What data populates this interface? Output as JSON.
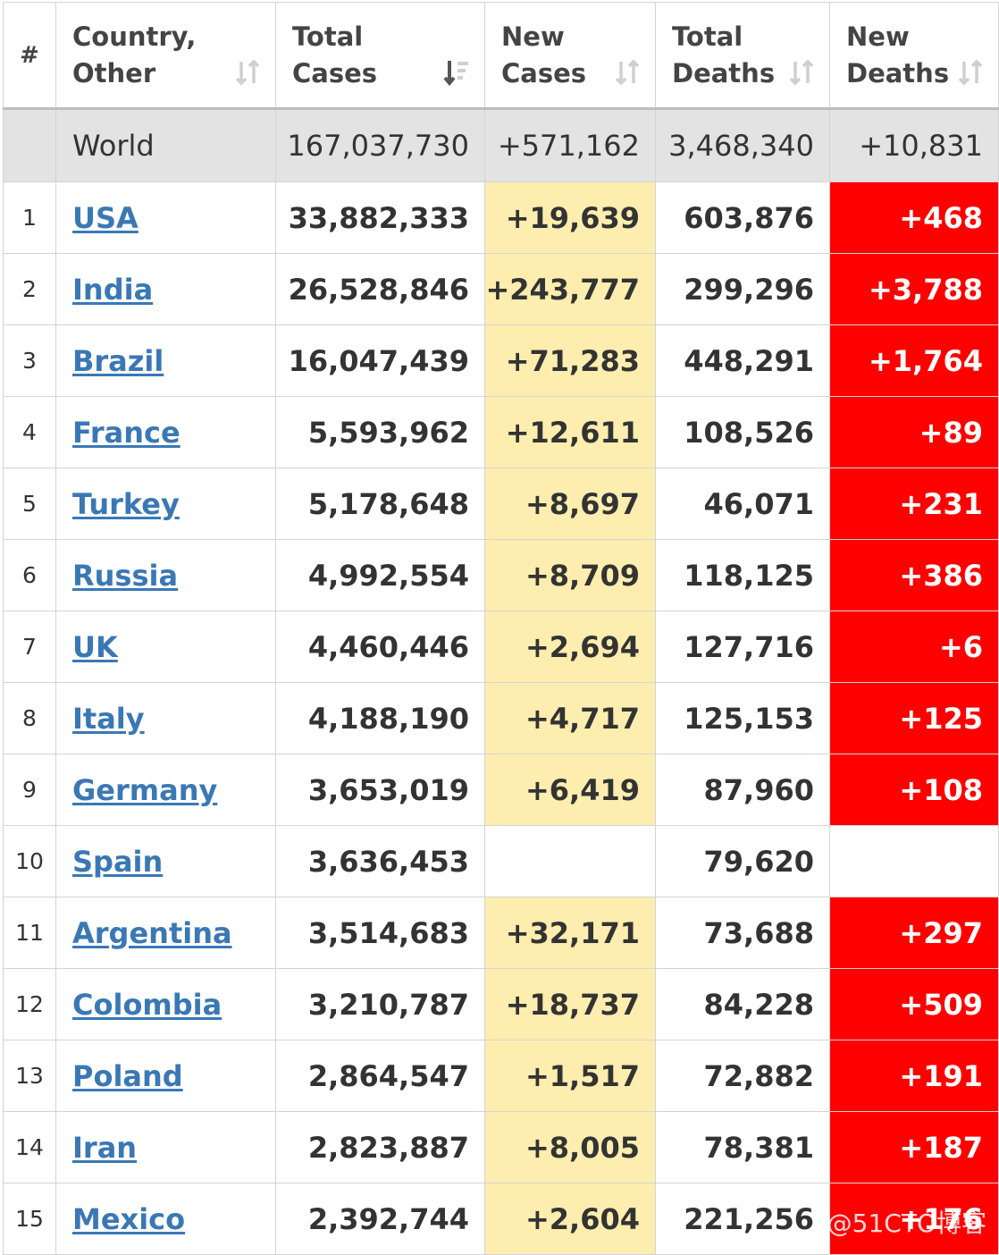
{
  "header": {
    "index": "#",
    "country": [
      "Country,",
      "Other"
    ],
    "total_cases": [
      "Total",
      "Cases"
    ],
    "new_cases": [
      "New",
      "Cases"
    ],
    "total_deaths": [
      "Total",
      "Deaths"
    ],
    "new_deaths": [
      "New",
      "Deaths"
    ]
  },
  "world": {
    "name": "World",
    "total_cases": "167,037,730",
    "new_cases": "+571,162",
    "total_deaths": "3,468,340",
    "new_deaths": "+10,831"
  },
  "rows": [
    {
      "rank": "1",
      "country": "USA",
      "total_cases": "33,882,333",
      "new_cases": "+19,639",
      "total_deaths": "603,876",
      "new_deaths": "+468"
    },
    {
      "rank": "2",
      "country": "India",
      "total_cases": "26,528,846",
      "new_cases": "+243,777",
      "total_deaths": "299,296",
      "new_deaths": "+3,788"
    },
    {
      "rank": "3",
      "country": "Brazil",
      "total_cases": "16,047,439",
      "new_cases": "+71,283",
      "total_deaths": "448,291",
      "new_deaths": "+1,764"
    },
    {
      "rank": "4",
      "country": "France",
      "total_cases": "5,593,962",
      "new_cases": "+12,611",
      "total_deaths": "108,526",
      "new_deaths": "+89"
    },
    {
      "rank": "5",
      "country": "Turkey",
      "total_cases": "5,178,648",
      "new_cases": "+8,697",
      "total_deaths": "46,071",
      "new_deaths": "+231"
    },
    {
      "rank": "6",
      "country": "Russia",
      "total_cases": "4,992,554",
      "new_cases": "+8,709",
      "total_deaths": "118,125",
      "new_deaths": "+386"
    },
    {
      "rank": "7",
      "country": "UK",
      "total_cases": "4,460,446",
      "new_cases": "+2,694",
      "total_deaths": "127,716",
      "new_deaths": "+6"
    },
    {
      "rank": "8",
      "country": "Italy",
      "total_cases": "4,188,190",
      "new_cases": "+4,717",
      "total_deaths": "125,153",
      "new_deaths": "+125"
    },
    {
      "rank": "9",
      "country": "Germany",
      "total_cases": "3,653,019",
      "new_cases": "+6,419",
      "total_deaths": "87,960",
      "new_deaths": "+108"
    },
    {
      "rank": "10",
      "country": "Spain",
      "total_cases": "3,636,453",
      "new_cases": "",
      "total_deaths": "79,620",
      "new_deaths": ""
    },
    {
      "rank": "11",
      "country": "Argentina",
      "total_cases": "3,514,683",
      "new_cases": "+32,171",
      "total_deaths": "73,688",
      "new_deaths": "+297"
    },
    {
      "rank": "12",
      "country": "Colombia",
      "total_cases": "3,210,787",
      "new_cases": "+18,737",
      "total_deaths": "84,228",
      "new_deaths": "+509"
    },
    {
      "rank": "13",
      "country": "Poland",
      "total_cases": "2,864,547",
      "new_cases": "+1,517",
      "total_deaths": "72,882",
      "new_deaths": "+191"
    },
    {
      "rank": "14",
      "country": "Iran",
      "total_cases": "2,823,887",
      "new_cases": "+8,005",
      "total_deaths": "78,381",
      "new_deaths": "+187"
    },
    {
      "rank": "15",
      "country": "Mexico",
      "total_cases": "2,392,744",
      "new_cases": "+2,604",
      "total_deaths": "221,256",
      "new_deaths": "+176"
    }
  ],
  "watermark": "@51CTO博客",
  "colors": {
    "new_cases_bg": "#fdedae",
    "new_deaths_bg": "#ff0000",
    "link": "#3a78b5",
    "world_bg": "#e3e3e3"
  },
  "icons": {
    "sort_default": "sort-updown-icon",
    "sort_active": "sort-desc-icon"
  }
}
